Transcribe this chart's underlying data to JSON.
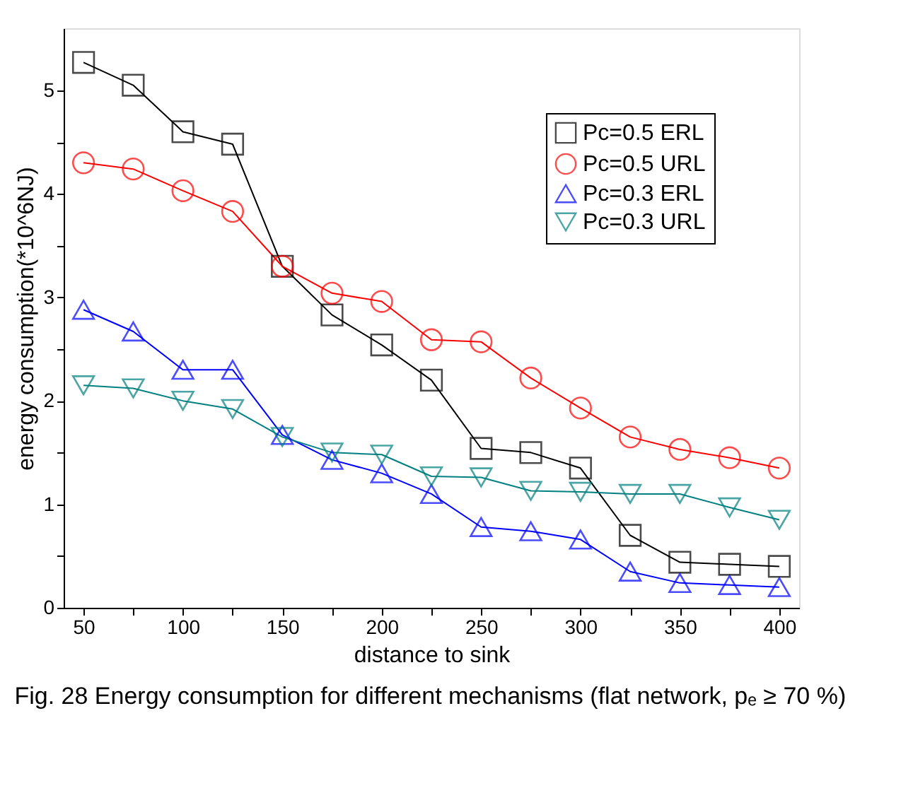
{
  "chart_data": {
    "type": "line",
    "xlabel": "distance to sink",
    "ylabel": "energy consumption(*10^6NJ)",
    "x": [
      50,
      75,
      100,
      125,
      150,
      175,
      200,
      225,
      250,
      275,
      300,
      325,
      350,
      375,
      400
    ],
    "series": [
      {
        "name": "Pc=0.5 ERL",
        "color": "#000000",
        "marker": "square",
        "values": [
          5.27,
          5.05,
          4.6,
          4.48,
          3.3,
          2.83,
          2.54,
          2.2,
          1.54,
          1.5,
          1.35,
          0.7,
          0.44,
          0.42,
          0.4
        ]
      },
      {
        "name": "Pc=0.5 URL",
        "color": "#ff0000",
        "marker": "circle",
        "values": [
          4.3,
          4.24,
          4.03,
          3.83,
          3.3,
          3.04,
          2.96,
          2.59,
          2.57,
          2.22,
          1.93,
          1.65,
          1.53,
          1.45,
          1.35
        ]
      },
      {
        "name": "Pc=0.3 ERL",
        "color": "#0000ff",
        "marker": "triangle",
        "values": [
          2.88,
          2.67,
          2.3,
          2.3,
          1.67,
          1.43,
          1.3,
          1.1,
          0.78,
          0.74,
          0.66,
          0.35,
          0.24,
          0.22,
          0.2
        ]
      },
      {
        "name": "Pc=0.3 URL",
        "color": "#008080",
        "marker": "triangle-down",
        "values": [
          2.15,
          2.12,
          2.0,
          1.92,
          1.65,
          1.5,
          1.48,
          1.27,
          1.26,
          1.13,
          1.12,
          1.1,
          1.1,
          0.97,
          0.85
        ]
      }
    ],
    "xlim": [
      40,
      410
    ],
    "xticks": [
      50,
      {
        "value": 75,
        "label": null
      },
      100,
      {
        "value": 125,
        "label": null
      },
      150,
      {
        "value": 175,
        "label": null
      },
      200,
      {
        "value": 225,
        "label": null
      },
      250,
      {
        "value": 275,
        "label": null
      },
      300,
      {
        "value": 325,
        "label": null
      },
      350,
      {
        "value": 375,
        "label": null
      },
      400
    ],
    "ylim": [
      0,
      5.6
    ],
    "yticks": [
      0,
      {
        "value": 0.5,
        "label": null
      },
      1,
      {
        "value": 1.5,
        "label": null
      },
      2,
      {
        "value": 2.5,
        "label": null
      },
      3,
      {
        "value": 3.5,
        "label": null
      },
      4,
      {
        "value": 4.5,
        "label": null
      },
      5
    ],
    "grid": false,
    "legend": "top right",
    "annotations": [
      "Fig. 28 Energy consumption for different mechanisms (flat network, pₑ ≥ 70 %)"
    ]
  }
}
